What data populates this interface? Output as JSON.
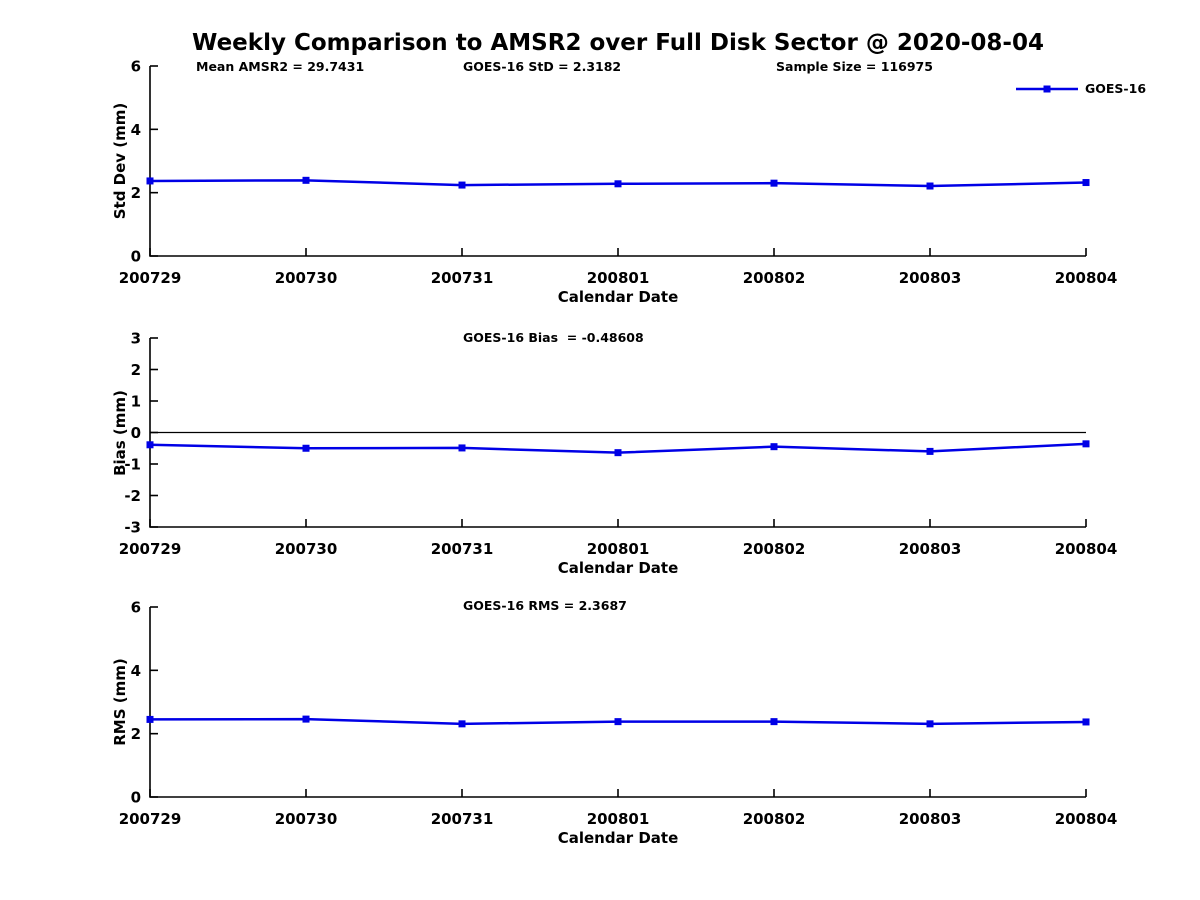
{
  "title": "Weekly Comparison to AMSR2 over Full Disk Sector @ 2020-08-04",
  "legend": {
    "label": "GOES-16",
    "marker": "filled-square",
    "color": "#0000e6",
    "position": "top-right-outside"
  },
  "colors": {
    "series": "#0000e6",
    "axis": "#000000",
    "background": "#ffffff"
  },
  "chart_data": [
    {
      "type": "line",
      "ylabel": "Std Dev (mm)",
      "xlabel": "Calendar Date",
      "categories": [
        "200729",
        "200730",
        "200731",
        "200801",
        "200802",
        "200803",
        "200804"
      ],
      "series": [
        {
          "name": "GOES-16",
          "values": [
            2.37,
            2.39,
            2.24,
            2.28,
            2.3,
            2.21,
            2.32
          ]
        }
      ],
      "ylim": [
        0,
        6
      ],
      "yticks": [
        0,
        2,
        4,
        6
      ],
      "grid": false,
      "annotations": [
        "Mean AMSR2 = 29.7431",
        "GOES-16 StD = 2.3182",
        "Sample Size = 116975"
      ]
    },
    {
      "type": "line",
      "ylabel": "Bias (mm)",
      "xlabel": "Calendar Date",
      "categories": [
        "200729",
        "200730",
        "200731",
        "200801",
        "200802",
        "200803",
        "200804"
      ],
      "series": [
        {
          "name": "GOES-16",
          "values": [
            -0.39,
            -0.5,
            -0.49,
            -0.64,
            -0.45,
            -0.6,
            -0.36
          ]
        }
      ],
      "ylim": [
        -3,
        3
      ],
      "yticks": [
        -3,
        -2,
        -1,
        0,
        1,
        2,
        3
      ],
      "zero_line": true,
      "grid": false,
      "annotations": [
        "GOES-16 Bias  = -0.48608"
      ]
    },
    {
      "type": "line",
      "ylabel": "RMS (mm)",
      "xlabel": "Calendar Date",
      "categories": [
        "200729",
        "200730",
        "200731",
        "200801",
        "200802",
        "200803",
        "200804"
      ],
      "series": [
        {
          "name": "GOES-16",
          "values": [
            2.45,
            2.46,
            2.31,
            2.38,
            2.38,
            2.31,
            2.37
          ]
        }
      ],
      "ylim": [
        0,
        6
      ],
      "yticks": [
        0,
        2,
        4,
        6
      ],
      "grid": false,
      "annotations": [
        "GOES-16 RMS = 2.3687"
      ]
    }
  ]
}
